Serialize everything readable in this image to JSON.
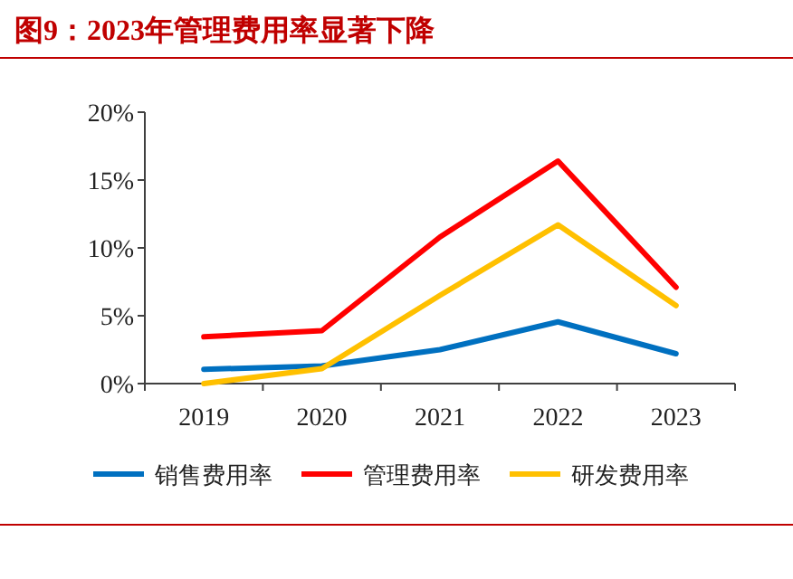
{
  "chart_data": {
    "type": "line",
    "title": "图9：2023年管理费用率显著下降",
    "categories": [
      "2019",
      "2020",
      "2021",
      "2022",
      "2023"
    ],
    "series": [
      {
        "name": "销售费用率",
        "color": "#0070c0",
        "values": [
          1.05,
          1.3,
          2.5,
          4.55,
          2.2
        ]
      },
      {
        "name": "管理费用率",
        "color": "#ff0000",
        "values": [
          3.45,
          3.9,
          10.8,
          16.4,
          7.1
        ]
      },
      {
        "name": "研发费用率",
        "color": "#ffc000",
        "values": [
          0.0,
          1.1,
          6.5,
          11.7,
          5.75
        ]
      }
    ],
    "ylim": [
      0,
      20
    ],
    "yticks": [
      {
        "value": 0,
        "label": "0%"
      },
      {
        "value": 5,
        "label": "5%"
      },
      {
        "value": 10,
        "label": "10%"
      },
      {
        "value": 15,
        "label": "15%"
      },
      {
        "value": 20,
        "label": "20%"
      }
    ],
    "grid": false,
    "legend": "bottom",
    "marker": "none",
    "line_style": "solid"
  }
}
